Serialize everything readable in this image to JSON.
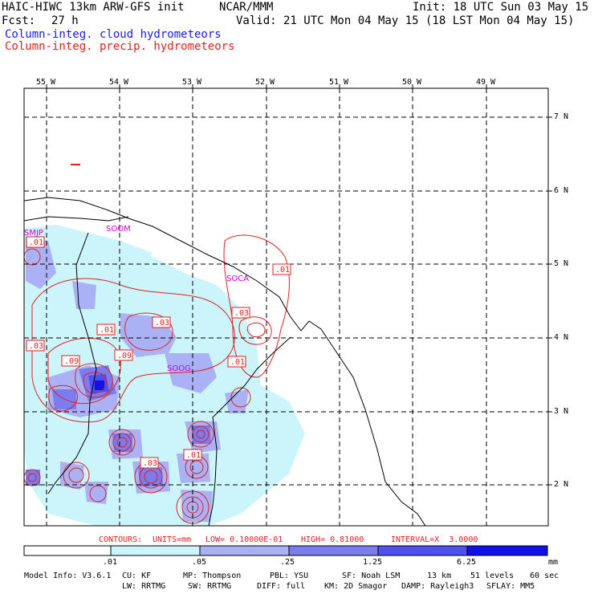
{
  "header": {
    "left_line1": "HAIC-HIWC 13km ARW-GFS init",
    "center_line1": "NCAR/MMM",
    "right_line1": "Init: 18 UTC Sun 03 May 15",
    "fcst_label": "Fcst:",
    "fcst_value": "27 h",
    "valid_line": "Valid: 21 UTC Mon 04 May 15 (18 LST Mon 04 May 15)",
    "field_cloud": "Column-integ. cloud hydrometeors",
    "field_precip": "Column-integ. precip. hydrometeors"
  },
  "map": {
    "lon_labels": [
      "55 W",
      "54 W",
      "53 W",
      "52 W",
      "51 W",
      "50 W",
      "49 W"
    ],
    "lat_labels": [
      "7 N",
      "6 N",
      "5 N",
      "4 N",
      "3 N",
      "2 N"
    ],
    "stations": [
      "SMJP",
      "SOOM",
      "SOCA",
      "SOOG"
    ],
    "contour_labels": [
      ".01",
      ".01",
      ".01",
      ".03",
      ".03",
      ".03",
      ".09",
      ".09",
      ".01",
      ".03",
      ".01",
      ".01"
    ],
    "colors": {
      "border": "#000000",
      "grid": "#000000",
      "precip_contour": "#e02020",
      "station": "#cc00cc",
      "cloud_levels": [
        "#ffffff",
        "#ccf5fb",
        "#aab2f5",
        "#7a7cf0",
        "#5050f0",
        "#1010e8"
      ]
    }
  },
  "contour_info": {
    "contours_label": "CONTOURS:",
    "units": "UNITS=mm",
    "low": "LOW= 0.10000E-01",
    "high": "HIGH= 0.81000",
    "interval": "INTERVAL=X  3.0000"
  },
  "colorbar": {
    "tick_labels": [
      ".01",
      ".05",
      ".25",
      "1.25",
      "6.25"
    ],
    "unit": "mm"
  },
  "model_info": {
    "line1": [
      "Model Info: V3.6.1",
      "CU: KF",
      "MP: Thompson",
      "PBL: YSU",
      "SF: Noah LSM",
      "13 km",
      "51 levels",
      "60 sec"
    ],
    "line2": [
      "LW: RRTMG",
      "SW: RRTMG",
      "DIFF: full",
      "KM: 2D Smagor",
      "DAMP: Rayleigh3",
      "SFLAY: MM5"
    ]
  }
}
